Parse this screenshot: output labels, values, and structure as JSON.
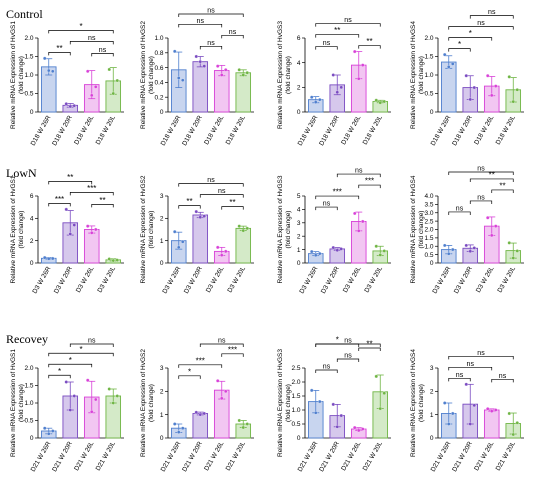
{
  "row_titles": [
    "Control",
    "LowN",
    "Recovey"
  ],
  "chart_data": [
    {
      "type": "bar",
      "panel": "Control-HvGS1",
      "ylabel": [
        "Relative mRNA Expression of HvGS1",
        "(fold change)"
      ],
      "categories": [
        "D18 W 26R",
        "D18 W 20R",
        "D18 W 26L",
        "D18 W 20L"
      ],
      "values": [
        1.22,
        0.18,
        0.74,
        0.84
      ],
      "errors": [
        0.22,
        0.05,
        0.38,
        0.36
      ],
      "points": [
        [
          1.45,
          1.12,
          1.1
        ],
        [
          0.22,
          0.15,
          0.17
        ],
        [
          1.1,
          0.45,
          0.68
        ],
        [
          1.15,
          0.5,
          0.85
        ]
      ],
      "colors": [
        "#4f7fce",
        "#7a4bc1",
        "#d842d8",
        "#6fb544"
      ],
      "fills": [
        "#c8d5ef",
        "#d6c8ec",
        "#f2c6f2",
        "#d4eac8"
      ],
      "ylim": [
        0,
        2
      ],
      "yticks": [
        "0",
        "0.5",
        "1.0",
        "1.5",
        "2.0"
      ],
      "brackets": [
        {
          "a": 0,
          "b": 1,
          "label": "**"
        },
        {
          "a": 1,
          "b": 3,
          "label": "ns"
        },
        {
          "a": 2,
          "b": 3,
          "label": "ns"
        },
        {
          "a": 0,
          "b": 3,
          "label": "*"
        }
      ]
    },
    {
      "type": "bar",
      "panel": "Control-HvGS2",
      "ylabel": [
        "Relative mRNA Expression of HvGS2",
        "(fold change)"
      ],
      "categories": [
        "D18 W 26R",
        "D18 W 20R",
        "D18 W 26L",
        "D18 W 20L"
      ],
      "values": [
        0.57,
        0.68,
        0.56,
        0.53
      ],
      "errors": [
        0.24,
        0.07,
        0.07,
        0.04
      ],
      "points": [
        [
          0.82,
          0.46,
          0.43
        ],
        [
          0.75,
          0.68,
          0.62
        ],
        [
          0.62,
          0.5,
          0.57
        ],
        [
          0.57,
          0.5,
          0.53
        ]
      ],
      "colors": [
        "#4f7fce",
        "#7a4bc1",
        "#d842d8",
        "#6fb544"
      ],
      "fills": [
        "#c8d5ef",
        "#d6c8ec",
        "#f2c6f2",
        "#d4eac8"
      ],
      "ylim": [
        0,
        1
      ],
      "yticks": [
        "0",
        "0.2",
        "0.4",
        "0.6",
        "0.8",
        "1.0"
      ],
      "brackets": [
        {
          "a": 1,
          "b": 2,
          "label": "ns"
        },
        {
          "a": 2,
          "b": 3,
          "label": "ns"
        },
        {
          "a": 0,
          "b": 2,
          "label": "ns"
        },
        {
          "a": 0,
          "b": 3,
          "label": "ns"
        }
      ]
    },
    {
      "type": "bar",
      "panel": "Control-HvGS3",
      "ylabel": [
        "Relative mRNA Expression of HvGS3",
        "(fold change)"
      ],
      "categories": [
        "D18 W 26R",
        "D18 W 20R",
        "D18 W 26L",
        "D18 W 20L"
      ],
      "values": [
        1.0,
        2.2,
        3.8,
        0.85
      ],
      "errors": [
        0.25,
        0.8,
        1.1,
        0.1
      ],
      "points": [
        [
          1.2,
          0.8,
          1.0
        ],
        [
          3.0,
          1.6,
          2.0
        ],
        [
          4.9,
          2.7,
          3.8
        ],
        [
          0.95,
          0.75,
          0.85
        ]
      ],
      "colors": [
        "#4f7fce",
        "#7a4bc1",
        "#d842d8",
        "#6fb544"
      ],
      "fills": [
        "#c8d5ef",
        "#d6c8ec",
        "#f2c6f2",
        "#d4eac8"
      ],
      "ylim": [
        0,
        6
      ],
      "yticks": [
        "0",
        "2",
        "4",
        "6"
      ],
      "brackets": [
        {
          "a": 0,
          "b": 1,
          "label": "ns"
        },
        {
          "a": 2,
          "b": 3,
          "label": "**"
        },
        {
          "a": 0,
          "b": 2,
          "label": "**"
        },
        {
          "a": 0,
          "b": 3,
          "label": "ns"
        }
      ]
    },
    {
      "type": "bar",
      "panel": "Control-HvGS4",
      "ylabel": [
        "Relative mRNA Expression of HvGS4",
        "(fold change)"
      ],
      "categories": [
        "D18 W 26R",
        "D18 W 20R",
        "D18 W 26L",
        "D18 W 20L"
      ],
      "values": [
        1.35,
        0.66,
        0.7,
        0.6
      ],
      "errors": [
        0.17,
        0.32,
        0.26,
        0.33
      ],
      "points": [
        [
          1.55,
          1.22,
          1.3
        ],
        [
          0.98,
          0.34,
          0.66
        ],
        [
          0.98,
          0.45,
          0.7
        ],
        [
          0.95,
          0.28,
          0.6
        ]
      ],
      "colors": [
        "#4f7fce",
        "#7a4bc1",
        "#d842d8",
        "#6fb544"
      ],
      "fills": [
        "#c8d5ef",
        "#d6c8ec",
        "#f2c6f2",
        "#d4eac8"
      ],
      "ylim": [
        0,
        2
      ],
      "yticks": [
        "0",
        "0.5",
        "1.0",
        "1.5",
        "2.0"
      ],
      "brackets": [
        {
          "a": 0,
          "b": 1,
          "label": "*"
        },
        {
          "a": 0,
          "b": 2,
          "label": "*"
        },
        {
          "a": 0,
          "b": 3,
          "label": "ns"
        },
        {
          "a": 1,
          "b": 3,
          "label": "ns"
        }
      ]
    },
    {
      "type": "bar",
      "panel": "LowN-HvGS1",
      "ylabel": [
        "Relative mRNA Expression of HvGS1",
        "(fold change)"
      ],
      "categories": [
        "D3 W 26R",
        "D3 W 20R",
        "D3 W 26L",
        "D3 W 20L"
      ],
      "values": [
        0.42,
        3.6,
        3.0,
        0.28
      ],
      "errors": [
        0.07,
        1.1,
        0.32,
        0.1
      ],
      "points": [
        [
          0.48,
          0.38,
          0.4
        ],
        [
          4.8,
          2.6,
          3.4
        ],
        [
          3.3,
          2.7,
          3.0
        ],
        [
          0.36,
          0.22,
          0.26
        ]
      ],
      "colors": [
        "#4f7fce",
        "#7a4bc1",
        "#d842d8",
        "#6fb544"
      ],
      "fills": [
        "#c8d5ef",
        "#d6c8ec",
        "#f2c6f2",
        "#d4eac8"
      ],
      "ylim": [
        0,
        6
      ],
      "yticks": [
        "0",
        "2",
        "4",
        "6"
      ],
      "brackets": [
        {
          "a": 2,
          "b": 3,
          "label": "**"
        },
        {
          "a": 0,
          "b": 1,
          "label": "***"
        },
        {
          "a": 1,
          "b": 3,
          "label": "***"
        },
        {
          "a": 0,
          "b": 2,
          "label": "**"
        }
      ]
    },
    {
      "type": "bar",
      "panel": "LowN-HvGS2",
      "ylabel": [
        "Relative mRNA Expression of HvGS2",
        "(fold change)"
      ],
      "categories": [
        "D3 W 26R",
        "D3 W 20R",
        "D3 W 26L",
        "D3 W 20L"
      ],
      "values": [
        1.0,
        2.15,
        0.52,
        1.55
      ],
      "errors": [
        0.38,
        0.12,
        0.18,
        0.1
      ],
      "points": [
        [
          1.4,
          0.7,
          0.95
        ],
        [
          2.3,
          2.05,
          2.1
        ],
        [
          0.7,
          0.35,
          0.52
        ],
        [
          1.65,
          1.45,
          1.55
        ]
      ],
      "colors": [
        "#4f7fce",
        "#7a4bc1",
        "#d842d8",
        "#6fb544"
      ],
      "fills": [
        "#c8d5ef",
        "#d6c8ec",
        "#f2c6f2",
        "#d4eac8"
      ],
      "ylim": [
        0,
        3
      ],
      "yticks": [
        "0",
        "1",
        "2",
        "3"
      ],
      "brackets": [
        {
          "a": 0,
          "b": 1,
          "label": "**"
        },
        {
          "a": 2,
          "b": 3,
          "label": "**"
        },
        {
          "a": 1,
          "b": 3,
          "label": "ns"
        },
        {
          "a": 0,
          "b": 3,
          "label": "ns"
        }
      ]
    },
    {
      "type": "bar",
      "panel": "LowN-HvGS3",
      "ylabel": [
        "Relative mRNA Expression of HvGS3",
        "(fold change)"
      ],
      "categories": [
        "D3 W 26R",
        "D3 W 20R",
        "D3 W 26L",
        "D3 W 20L"
      ],
      "values": [
        0.7,
        1.05,
        3.1,
        0.9
      ],
      "errors": [
        0.15,
        0.1,
        0.7,
        0.35
      ],
      "points": [
        [
          0.85,
          0.58,
          0.7
        ],
        [
          1.15,
          0.95,
          1.05
        ],
        [
          3.7,
          2.4,
          3.1
        ],
        [
          1.25,
          0.6,
          0.9
        ]
      ],
      "colors": [
        "#4f7fce",
        "#7a4bc1",
        "#d842d8",
        "#6fb544"
      ],
      "fills": [
        "#c8d5ef",
        "#d6c8ec",
        "#f2c6f2",
        "#d4eac8"
      ],
      "ylim": [
        0,
        5
      ],
      "yticks": [
        "0",
        "1",
        "2",
        "3",
        "4",
        "5"
      ],
      "brackets": [
        {
          "a": 0,
          "b": 1,
          "label": "ns"
        },
        {
          "a": 0,
          "b": 2,
          "label": "***"
        },
        {
          "a": 2,
          "b": 3,
          "label": "***"
        },
        {
          "a": 1,
          "b": 3,
          "label": "ns"
        }
      ]
    },
    {
      "type": "bar",
      "panel": "LowN-HvGS4",
      "ylabel": [
        "Relative mRNA Expression of HvGS4",
        "(fold change)"
      ],
      "categories": [
        "D3 W 26R",
        "D3 W 20R",
        "D3 W 26L",
        "D3 W 20L"
      ],
      "values": [
        0.8,
        0.88,
        2.2,
        0.74
      ],
      "errors": [
        0.25,
        0.2,
        0.55,
        0.45
      ],
      "points": [
        [
          1.05,
          0.55,
          0.8
        ],
        [
          1.05,
          0.7,
          0.9
        ],
        [
          2.7,
          1.65,
          2.2
        ],
        [
          1.2,
          0.3,
          0.72
        ]
      ],
      "colors": [
        "#4f7fce",
        "#7a4bc1",
        "#d842d8",
        "#6fb544"
      ],
      "fills": [
        "#c8d5ef",
        "#d6c8ec",
        "#f2c6f2",
        "#d4eac8"
      ],
      "ylim": [
        0,
        4
      ],
      "yticks": [
        "0",
        "0.5",
        "1.0",
        "1.5",
        "2.0",
        "2.5",
        "3.0",
        "3.5",
        "4.0"
      ],
      "brackets": [
        {
          "a": 0,
          "b": 1,
          "label": "ns"
        },
        {
          "a": 1,
          "b": 2,
          "label": "ns"
        },
        {
          "a": 2,
          "b": 3,
          "label": "**"
        },
        {
          "a": 1,
          "b": 3,
          "label": "**"
        },
        {
          "a": 0,
          "b": 3,
          "label": "ns"
        }
      ]
    },
    {
      "type": "bar",
      "panel": "Recovey-HvGS1",
      "ylabel": [
        "Relative mRNA Expression of HvGS1",
        "(fold change)"
      ],
      "categories": [
        "D21 W 26R",
        "D21 W 20R",
        "D21 W 26L",
        "D21 W 20L"
      ],
      "values": [
        0.2,
        1.2,
        1.17,
        1.2
      ],
      "errors": [
        0.08,
        0.4,
        0.45,
        0.2
      ],
      "points": [
        [
          0.28,
          0.12,
          0.2
        ],
        [
          1.6,
          0.8,
          1.2
        ],
        [
          1.65,
          0.75,
          1.1
        ],
        [
          1.4,
          1.0,
          1.2
        ]
      ],
      "colors": [
        "#4f7fce",
        "#7a4bc1",
        "#d842d8",
        "#6fb544"
      ],
      "fills": [
        "#c8d5ef",
        "#d6c8ec",
        "#f2c6f2",
        "#d4eac8"
      ],
      "ylim": [
        0,
        2
      ],
      "yticks": [
        "0",
        "0.5",
        "1.0",
        "1.5",
        "2.0"
      ],
      "brackets": [
        {
          "a": 0,
          "b": 1,
          "label": "*"
        },
        {
          "a": 0,
          "b": 2,
          "label": "*"
        },
        {
          "a": 0,
          "b": 3,
          "label": "*"
        },
        {
          "a": 1,
          "b": 3,
          "label": "ns"
        }
      ]
    },
    {
      "type": "bar",
      "panel": "Recovey-HvGS2",
      "ylabel": [
        "Relative mRNA Expression of HvGS2",
        "(fold change)"
      ],
      "categories": [
        "D21 W 26R",
        "D21 W 20R",
        "D21 W 26L",
        "D21 W 20L"
      ],
      "values": [
        0.42,
        1.05,
        2.05,
        0.6
      ],
      "errors": [
        0.18,
        0.06,
        0.38,
        0.15
      ],
      "points": [
        [
          0.6,
          0.25,
          0.42
        ],
        [
          1.1,
          1.0,
          1.05
        ],
        [
          2.45,
          1.7,
          2.0
        ],
        [
          0.75,
          0.45,
          0.6
        ]
      ],
      "colors": [
        "#4f7fce",
        "#7a4bc1",
        "#d842d8",
        "#6fb544"
      ],
      "fills": [
        "#c8d5ef",
        "#d6c8ec",
        "#f2c6f2",
        "#d4eac8"
      ],
      "ylim": [
        0,
        3
      ],
      "yticks": [
        "0",
        "1",
        "2",
        "3"
      ],
      "brackets": [
        {
          "a": 0,
          "b": 1,
          "label": "*"
        },
        {
          "a": 0,
          "b": 2,
          "label": "***"
        },
        {
          "a": 2,
          "b": 3,
          "label": "***"
        },
        {
          "a": 1,
          "b": 3,
          "label": "ns"
        }
      ]
    },
    {
      "type": "bar",
      "panel": "Recovey-HvGS3",
      "ylabel": [
        "Relative mRNA Expression of HvGS3",
        "(fold change)"
      ],
      "categories": [
        "D21 W 26R",
        "D21 W 20R",
        "D21 W 26L",
        "D21 W 20L"
      ],
      "values": [
        1.3,
        0.8,
        0.32,
        1.65
      ],
      "errors": [
        0.4,
        0.4,
        0.05,
        0.6
      ],
      "points": [
        [
          1.7,
          0.9,
          1.3
        ],
        [
          1.2,
          0.4,
          0.8
        ],
        [
          0.37,
          0.27,
          0.32
        ],
        [
          2.2,
          1.05,
          1.6
        ]
      ],
      "colors": [
        "#4f7fce",
        "#7a4bc1",
        "#d842d8",
        "#6fb544"
      ],
      "fills": [
        "#c8d5ef",
        "#d6c8ec",
        "#f2c6f2",
        "#d4eac8"
      ],
      "ylim": [
        0,
        2.5
      ],
      "yticks": [
        "0",
        "0.5",
        "1.0",
        "1.5",
        "2.0",
        "2.5"
      ],
      "brackets": [
        {
          "a": 0,
          "b": 1,
          "label": "ns"
        },
        {
          "a": 1,
          "b": 2,
          "label": "ns"
        },
        {
          "a": 2,
          "b": 3,
          "label": "**"
        },
        {
          "a": 0,
          "b": 2,
          "label": "*"
        },
        {
          "a": 0,
          "b": 3,
          "label": "ns"
        }
      ]
    },
    {
      "type": "bar",
      "panel": "Recovey-HvGS4",
      "ylabel": [
        "Relative mRNA Expression of HvGS4",
        "(fold change)"
      ],
      "categories": [
        "D21 W 26R",
        "D21 W 20R",
        "D21 W 26L",
        "D21 W 20L"
      ],
      "values": [
        1.05,
        1.45,
        1.2,
        0.62
      ],
      "errors": [
        0.45,
        0.85,
        0.05,
        0.45
      ],
      "points": [
        [
          1.5,
          0.6,
          1.05
        ],
        [
          2.3,
          0.6,
          1.4
        ],
        [
          1.25,
          1.15,
          1.2
        ],
        [
          1.05,
          0.15,
          0.65
        ]
      ],
      "colors": [
        "#4f7fce",
        "#7a4bc1",
        "#d842d8",
        "#6fb544"
      ],
      "fills": [
        "#c8d5ef",
        "#d6c8ec",
        "#f2c6f2",
        "#d4eac8"
      ],
      "ylim": [
        0,
        3
      ],
      "yticks": [
        "0",
        "1",
        "2",
        "3"
      ],
      "brackets": [
        {
          "a": 0,
          "b": 1,
          "label": "ns"
        },
        {
          "a": 0,
          "b": 2,
          "label": "ns"
        },
        {
          "a": 2,
          "b": 3,
          "label": "ns"
        },
        {
          "a": 0,
          "b": 3,
          "label": "ns"
        }
      ]
    }
  ]
}
